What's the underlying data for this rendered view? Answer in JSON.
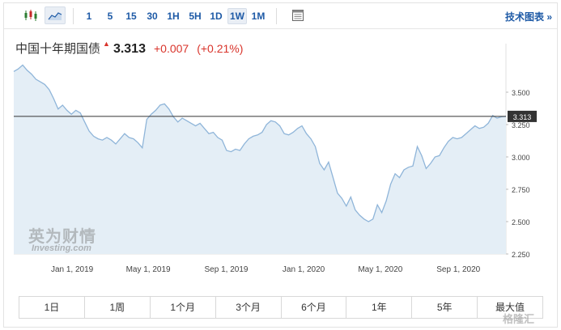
{
  "toolbar": {
    "candlestick_icon": "candlestick-chart-icon",
    "area_icon": "area-chart-icon",
    "periods": [
      "1",
      "5",
      "15",
      "30",
      "1H",
      "5H",
      "1D",
      "1W",
      "1M"
    ],
    "active_period": "1W",
    "table_icon": "table-icon",
    "tech_chart_link": "技术图表 »"
  },
  "quote": {
    "name": "中国十年期国债",
    "price": "3.313",
    "change": "+0.007",
    "change_pct": "(+0.21%)",
    "direction": "up",
    "up_color": "#d9342b"
  },
  "watermark": {
    "brand_cn": "英为财情",
    "brand_en": "Investing.com",
    "corner": "格隆汇"
  },
  "range_tabs": [
    "1日",
    "1周",
    "1个月",
    "3个月",
    "6个月",
    "1年",
    "5年",
    "最大值"
  ],
  "chart_data": {
    "type": "area",
    "title": "",
    "xlabel": "",
    "ylabel": "",
    "x_ticks": [
      "Jan 1, 2019",
      "May 1, 2019",
      "Sep 1, 2019",
      "Jan 1, 2020",
      "May 1, 2020",
      "Sep 1, 2020"
    ],
    "y_ticks": [
      "3.500",
      "3.250",
      "3.000",
      "2.750",
      "2.500",
      "2.250"
    ],
    "ylim": [
      2.25,
      3.75
    ],
    "last_value_label": "3.313",
    "last_value": 3.313,
    "line_color": "#8fb5d9",
    "fill_color": "#e4eef6",
    "series": [
      {
        "values": [
          3.66,
          3.68,
          3.71,
          3.67,
          3.64,
          3.6,
          3.58,
          3.56,
          3.52,
          3.45,
          3.37,
          3.4,
          3.36,
          3.33,
          3.36,
          3.34,
          3.27,
          3.2,
          3.16,
          3.14,
          3.13,
          3.15,
          3.13,
          3.1,
          3.14,
          3.18,
          3.15,
          3.14,
          3.11,
          3.07,
          3.29,
          3.33,
          3.36,
          3.4,
          3.41,
          3.37,
          3.31,
          3.27,
          3.3,
          3.28,
          3.26,
          3.24,
          3.26,
          3.22,
          3.18,
          3.19,
          3.15,
          3.13,
          3.05,
          3.04,
          3.06,
          3.05,
          3.1,
          3.14,
          3.16,
          3.17,
          3.19,
          3.25,
          3.28,
          3.27,
          3.24,
          3.18,
          3.17,
          3.19,
          3.22,
          3.24,
          3.18,
          3.14,
          3.08,
          2.95,
          2.9,
          2.96,
          2.84,
          2.72,
          2.68,
          2.62,
          2.69,
          2.59,
          2.55,
          2.52,
          2.5,
          2.52,
          2.63,
          2.57,
          2.66,
          2.79,
          2.87,
          2.84,
          2.9,
          2.92,
          2.93,
          3.08,
          3.01,
          2.91,
          2.95,
          3.0,
          3.01,
          3.07,
          3.12,
          3.15,
          3.14,
          3.15,
          3.18,
          3.21,
          3.24,
          3.22,
          3.23,
          3.26,
          3.32,
          3.3,
          3.31,
          3.313
        ]
      }
    ]
  }
}
